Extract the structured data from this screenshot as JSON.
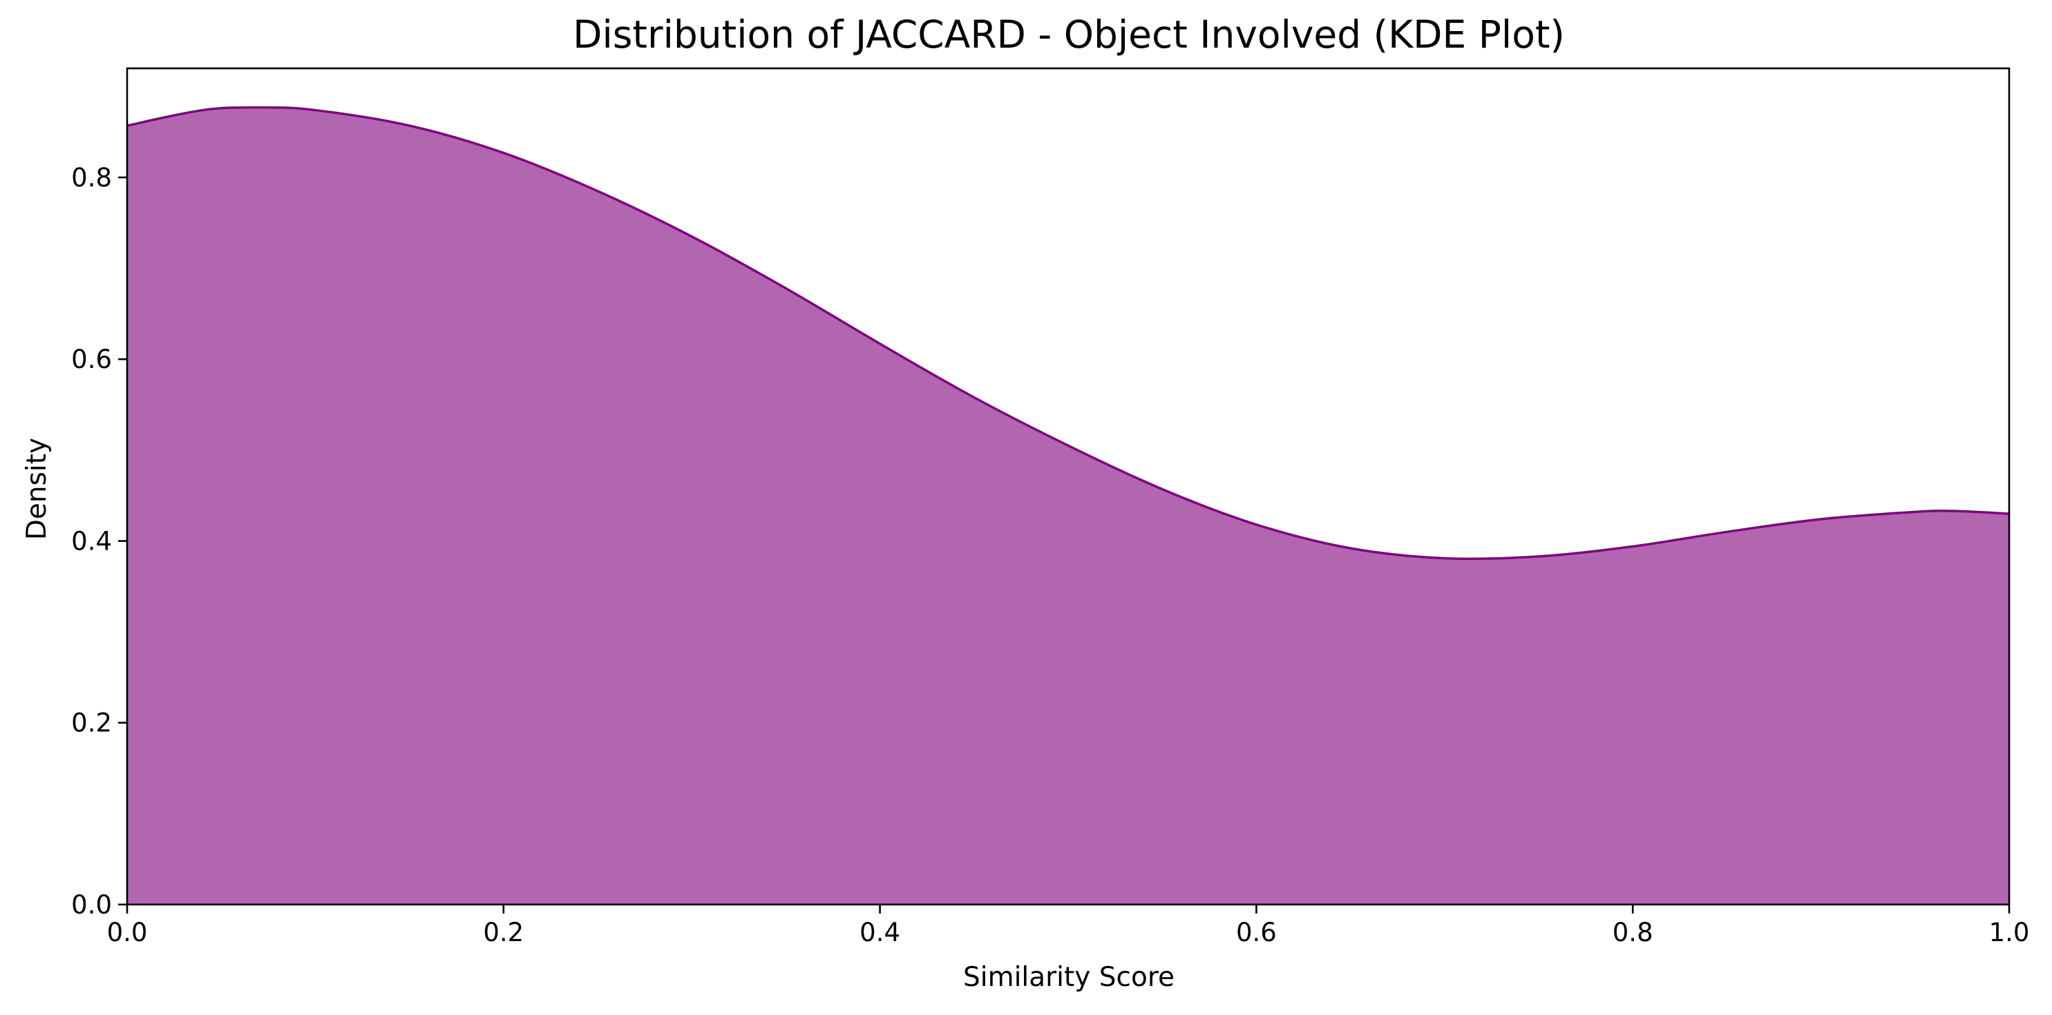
{
  "chart_data": {
    "type": "area",
    "title": "Distribution of JACCARD - Object Involved (KDE Plot)",
    "xlabel": "Similarity Score",
    "ylabel": "Density",
    "xlim": [
      0.0,
      1.0
    ],
    "ylim": [
      0.0,
      0.92
    ],
    "x_ticks": [
      0.0,
      0.2,
      0.4,
      0.6,
      0.8,
      1.0
    ],
    "x_tick_labels": [
      "0.0",
      "0.2",
      "0.4",
      "0.6",
      "0.8",
      "1.0"
    ],
    "y_ticks": [
      0.0,
      0.2,
      0.4,
      0.6,
      0.8
    ],
    "y_tick_labels": [
      "0.0",
      "0.2",
      "0.4",
      "0.6",
      "0.8"
    ],
    "grid": false,
    "legend": "none",
    "series": [
      {
        "fill_color": "#b266b0",
        "line_color": "#800080",
        "points": [
          {
            "x": 0.0,
            "y": 0.857
          },
          {
            "x": 0.04,
            "y": 0.874
          },
          {
            "x": 0.07,
            "y": 0.877
          },
          {
            "x": 0.1,
            "y": 0.874
          },
          {
            "x": 0.15,
            "y": 0.857
          },
          {
            "x": 0.2,
            "y": 0.827
          },
          {
            "x": 0.25,
            "y": 0.785
          },
          {
            "x": 0.3,
            "y": 0.735
          },
          {
            "x": 0.35,
            "y": 0.678
          },
          {
            "x": 0.4,
            "y": 0.617
          },
          {
            "x": 0.45,
            "y": 0.558
          },
          {
            "x": 0.5,
            "y": 0.505
          },
          {
            "x": 0.55,
            "y": 0.457
          },
          {
            "x": 0.6,
            "y": 0.418
          },
          {
            "x": 0.65,
            "y": 0.392
          },
          {
            "x": 0.7,
            "y": 0.381
          },
          {
            "x": 0.75,
            "y": 0.383
          },
          {
            "x": 0.8,
            "y": 0.394
          },
          {
            "x": 0.85,
            "y": 0.41
          },
          {
            "x": 0.9,
            "y": 0.424
          },
          {
            "x": 0.95,
            "y": 0.432
          },
          {
            "x": 0.97,
            "y": 0.433
          },
          {
            "x": 1.0,
            "y": 0.43
          }
        ]
      }
    ]
  }
}
